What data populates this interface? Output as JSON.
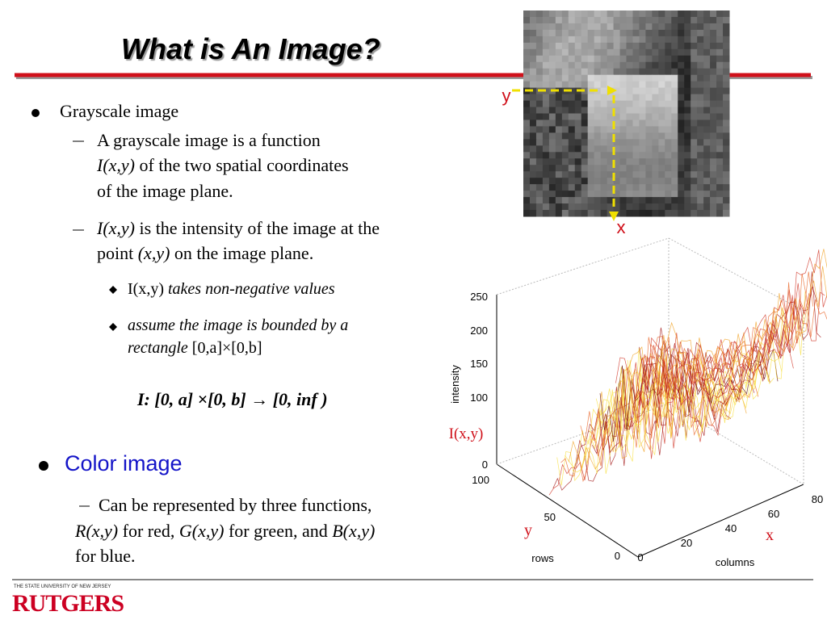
{
  "title": "What is An Image?",
  "grayscale": {
    "heading": "Grayscale image",
    "definition": {
      "line1": "A grayscale image is a function",
      "func": "I(x,y)",
      "line2": "of the two spatial coordinates",
      "line3": "of the image plane."
    },
    "intensity": {
      "func": "I(x,y)",
      "text1": "is the intensity of the image at the",
      "text2": "point",
      "coords": "(x,y)",
      "text3": "on the image plane."
    },
    "properties": [
      {
        "func": "I(x,y)",
        "text": "takes non-negative values"
      },
      {
        "text": "assume the image is bounded by a",
        "text2": "rectangle",
        "range": "[0,a]×[0,b]"
      }
    ],
    "mapping": "I: [0, a] ×[0, b] → [0, inf )"
  },
  "color": {
    "heading": "Color image",
    "text1": "Can be represented by three functions,",
    "r": "R(x,y)",
    "t2": "for red,",
    "g": "G(x,y)",
    "t3": "for green, and",
    "b": "B(x,y)",
    "t4": "for blue."
  },
  "image_axes": {
    "y": "y",
    "x": "x"
  },
  "plot": {
    "zlabel": "intensity",
    "zticks": [
      250,
      200,
      150,
      100,
      0
    ],
    "func_label": "I(x,y)",
    "rows_label": "rows",
    "rows_ticks": [
      100,
      50,
      0
    ],
    "cols_label": "columns",
    "cols_ticks": [
      0,
      20,
      40,
      60,
      80
    ],
    "y_axis": "y",
    "x_axis": "x"
  },
  "footer": {
    "university": "THE STATE UNIVERSITY OF NEW JERSEY",
    "logo": "RUTGERS"
  }
}
